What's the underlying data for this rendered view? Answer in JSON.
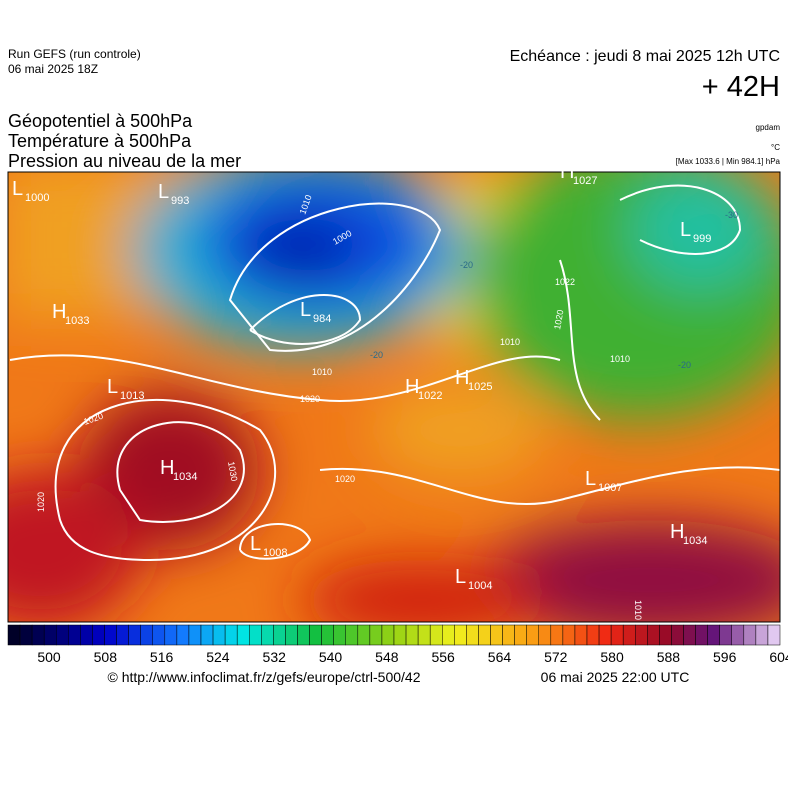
{
  "header": {
    "run": "Run GEFS (run controle)",
    "date": "06 mai 2025 18Z",
    "echeance": "Echéance : jeudi 8 mai 2025 12h UTC",
    "lead": "+ 42H"
  },
  "titles": [
    "Géopotentiel à 500hPa",
    "Température à 500hPa",
    "Pression au niveau de la mer"
  ],
  "units": {
    "geopotential": "gpdam",
    "temperature": "°C",
    "pressure_range": "[Max 1033.6 | Min 984.1] hPa"
  },
  "pressure_centers": [
    {
      "type": "L",
      "value": "1000"
    },
    {
      "type": "L",
      "value": "993"
    },
    {
      "type": "L",
      "value": "984"
    },
    {
      "type": "H",
      "value": "1033"
    },
    {
      "type": "L",
      "value": "1013"
    },
    {
      "type": "H",
      "value": "1034"
    },
    {
      "type": "L",
      "value": "1008"
    },
    {
      "type": "H",
      "value": "1022"
    },
    {
      "type": "H",
      "value": "1025"
    },
    {
      "type": "L",
      "value": "1004"
    },
    {
      "type": "L",
      "value": "1007"
    },
    {
      "type": "H",
      "value": "1027"
    },
    {
      "type": "L",
      "value": "999"
    },
    {
      "type": "H",
      "value": "1034"
    }
  ],
  "isobar_labels": [
    "1010",
    "1000",
    "1010",
    "1020",
    "1020",
    "1030",
    "1020",
    "1020",
    "1022",
    "1020",
    "1010",
    "1010",
    "1010"
  ],
  "temperature_labels": [
    "-20",
    "-30",
    "-20",
    "-20"
  ],
  "colorbar": {
    "ticks": [
      "500",
      "508",
      "516",
      "524",
      "532",
      "540",
      "548",
      "556",
      "564",
      "572",
      "580",
      "588",
      "596",
      "604"
    ]
  },
  "footer": {
    "url": "© http://www.infoclimat.fr/z/gefs/europe/ctrl-500/42",
    "time": "06 mai 2025 22:00 UTC"
  }
}
